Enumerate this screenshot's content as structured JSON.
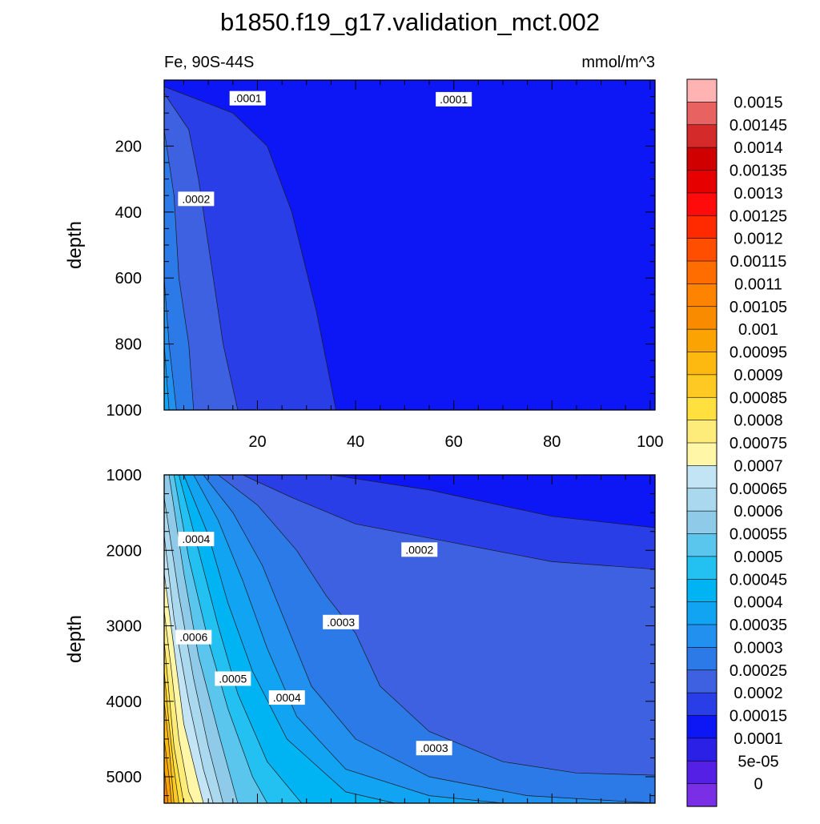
{
  "chart_data": [
    {
      "type": "contour",
      "title": "b1850.f19_g17.validation_mct.002",
      "subtitle_left": "Fe, 90S-44S",
      "subtitle_right": "mmol/m^3",
      "ylabel": "depth",
      "xlabel": "",
      "xlim": [
        1,
        101
      ],
      "ylim": [
        1000,
        0
      ],
      "x_ticks": [
        20,
        40,
        60,
        80,
        100
      ],
      "y_ticks": [
        200,
        400,
        600,
        800,
        1000
      ],
      "contour_labels": [
        {
          "text": ".0001",
          "x": 18,
          "y": 55
        },
        {
          "text": ".0001",
          "x": 60,
          "y": 58
        },
        {
          "text": ".0002",
          "x": 7.5,
          "y": 360
        }
      ],
      "regions": [
        {
          "level": 0.00015,
          "color": "#2a3ee8",
          "points": [
            [
              1,
              20
            ],
            [
              15,
              100
            ],
            [
              22,
              200
            ],
            [
              27,
              400
            ],
            [
              32,
              700
            ],
            [
              36,
              1000
            ],
            [
              1,
              1000
            ]
          ]
        },
        {
          "level": 0.0002,
          "color": "#3d61e0",
          "points": [
            [
              1,
              40
            ],
            [
              6,
              150
            ],
            [
              8,
              300
            ],
            [
              10,
              500
            ],
            [
              13,
              800
            ],
            [
              16,
              1000
            ],
            [
              1,
              1000
            ]
          ]
        },
        {
          "level": 0.00025,
          "color": "#2b7ae8",
          "points": [
            [
              1,
              150
            ],
            [
              3,
              350
            ],
            [
              4,
              600
            ],
            [
              6,
              800
            ],
            [
              7,
              1000
            ],
            [
              1,
              1000
            ]
          ]
        },
        {
          "level": 0.0003,
          "color": "#2190ef",
          "points": [
            [
              1,
              600
            ],
            [
              2,
              800
            ],
            [
              3.5,
              1000
            ],
            [
              1,
              1000
            ]
          ]
        },
        {
          "level": 0.00035,
          "color": "#11a4f2",
          "points": [
            [
              1,
              800
            ],
            [
              2,
              1000
            ],
            [
              1,
              1000
            ]
          ]
        }
      ],
      "grid": false
    },
    {
      "type": "contour",
      "ylabel": "depth",
      "xlabel": "",
      "xlim": [
        1,
        101
      ],
      "ylim": [
        5350,
        1000
      ],
      "x_ticks": [
        20,
        40,
        60,
        80,
        100
      ],
      "y_ticks": [
        1000,
        2000,
        3000,
        4000,
        5000
      ],
      "contour_labels": [
        {
          "text": ".0004",
          "x": 7.5,
          "y": 1850
        },
        {
          "text": ".0002",
          "x": 53,
          "y": 1990
        },
        {
          "text": ".0003",
          "x": 37,
          "y": 2950
        },
        {
          "text": ".0006",
          "x": 7,
          "y": 3150
        },
        {
          "text": ".0005",
          "x": 15,
          "y": 3700
        },
        {
          "text": ".0004",
          "x": 26,
          "y": 3950
        },
        {
          "text": ".0003",
          "x": 56,
          "y": 4620
        }
      ],
      "regions": [
        {
          "level": 0.00015,
          "color": "#2a3ee8",
          "points": [
            [
              1,
              1000
            ],
            [
              35,
              1000
            ],
            [
              55,
              1200
            ],
            [
              80,
              1550
            ],
            [
              101,
              1700
            ],
            [
              101,
              5350
            ],
            [
              1,
              5350
            ]
          ]
        },
        {
          "level": 0.0002,
          "color": "#3d61e0",
          "points": [
            [
              1,
              1000
            ],
            [
              17,
              1000
            ],
            [
              27,
              1300
            ],
            [
              40,
              1650
            ],
            [
              60,
              1900
            ],
            [
              80,
              2150
            ],
            [
              101,
              2250
            ],
            [
              101,
              5350
            ],
            [
              1,
              5350
            ]
          ]
        },
        {
          "level": 0.00025,
          "color": "#2b7ae8",
          "points": [
            [
              1,
              1000
            ],
            [
              12,
              1000
            ],
            [
              20,
              1400
            ],
            [
              28,
              2000
            ],
            [
              34,
              2600
            ],
            [
              40,
              3100
            ],
            [
              45,
              3800
            ],
            [
              55,
              4400
            ],
            [
              70,
              4800
            ],
            [
              85,
              4950
            ],
            [
              101,
              4980
            ],
            [
              101,
              5350
            ],
            [
              1,
              5350
            ]
          ]
        },
        {
          "level": 0.0003,
          "color": "#2190ef",
          "points": [
            [
              1,
              1000
            ],
            [
              9,
              1000
            ],
            [
              15,
              1500
            ],
            [
              21,
              2200
            ],
            [
              26,
              3000
            ],
            [
              31,
              3800
            ],
            [
              40,
              4500
            ],
            [
              55,
              5000
            ],
            [
              75,
              5250
            ],
            [
              101,
              5350
            ],
            [
              1,
              5350
            ]
          ]
        },
        {
          "level": 0.00035,
          "color": "#11a4f2",
          "points": [
            [
              1,
              1000
            ],
            [
              7,
              1000
            ],
            [
              12,
              1600
            ],
            [
              17,
              2400
            ],
            [
              22,
              3300
            ],
            [
              28,
              4200
            ],
            [
              38,
              4900
            ],
            [
              55,
              5250
            ],
            [
              70,
              5350
            ],
            [
              1,
              5350
            ]
          ]
        },
        {
          "level": 0.0004,
          "color": "#00b4f4",
          "points": [
            [
              1,
              1000
            ],
            [
              5,
              1000
            ],
            [
              10,
              1800
            ],
            [
              14,
              2700
            ],
            [
              19,
              3600
            ],
            [
              26,
              4500
            ],
            [
              38,
              5200
            ],
            [
              48,
              5350
            ],
            [
              1,
              5350
            ]
          ]
        },
        {
          "level": 0.00045,
          "color": "#23c1f2",
          "points": [
            [
              1,
              1000
            ],
            [
              4,
              1000
            ],
            [
              8,
              2000
            ],
            [
              12,
              3000
            ],
            [
              16,
              3900
            ],
            [
              22,
              4800
            ],
            [
              29,
              5350
            ],
            [
              1,
              5350
            ]
          ]
        },
        {
          "level": 0.0005,
          "color": "#5ac6ee",
          "points": [
            [
              1,
              1000
            ],
            [
              3,
              1000
            ],
            [
              6,
              2100
            ],
            [
              10,
              3200
            ],
            [
              14,
              4100
            ],
            [
              19,
              5000
            ],
            [
              22,
              5350
            ],
            [
              1,
              5350
            ]
          ]
        },
        {
          "level": 0.00055,
          "color": "#8fcbe8",
          "points": [
            [
              1,
              1000
            ],
            [
              2,
              1000
            ],
            [
              5,
              2300
            ],
            [
              8,
              3400
            ],
            [
              12,
              4400
            ],
            [
              16,
              5350
            ],
            [
              1,
              5350
            ]
          ]
        },
        {
          "level": 0.0006,
          "color": "#aad8ef",
          "points": [
            [
              1,
              1300
            ],
            [
              4,
              2600
            ],
            [
              7,
              3700
            ],
            [
              10,
              4600
            ],
            [
              13,
              5350
            ],
            [
              1,
              5350
            ]
          ]
        },
        {
          "level": 0.00065,
          "color": "#c2e4f5",
          "points": [
            [
              1,
              1800
            ],
            [
              3,
              2900
            ],
            [
              6,
              4000
            ],
            [
              9,
              4900
            ],
            [
              11,
              5350
            ],
            [
              1,
              5350
            ]
          ]
        },
        {
          "level": 0.0007,
          "color": "#fff7a7",
          "points": [
            [
              1,
              2300
            ],
            [
              3,
              3300
            ],
            [
              5,
              4300
            ],
            [
              8,
              5100
            ],
            [
              9,
              5350
            ],
            [
              1,
              5350
            ]
          ]
        },
        {
          "level": 0.00075,
          "color": "#fdec79",
          "points": [
            [
              1,
              2800
            ],
            [
              2.5,
              3600
            ],
            [
              4,
              4500
            ],
            [
              6,
              5200
            ],
            [
              7,
              5350
            ],
            [
              1,
              5350
            ]
          ]
        },
        {
          "level": 0.0008,
          "color": "#ffe03e",
          "points": [
            [
              1,
              3200
            ],
            [
              2,
              3900
            ],
            [
              3,
              4600
            ],
            [
              5,
              5350
            ],
            [
              1,
              5350
            ]
          ]
        },
        {
          "level": 0.00085,
          "color": "#fdc922",
          "points": [
            [
              1,
              3600
            ],
            [
              2,
              4300
            ],
            [
              3,
              4900
            ],
            [
              4,
              5350
            ],
            [
              1,
              5350
            ]
          ]
        },
        {
          "level": 0.0009,
          "color": "#fdb910",
          "points": [
            [
              1,
              4000
            ],
            [
              2,
              4600
            ],
            [
              3,
              5350
            ],
            [
              1,
              5350
            ]
          ]
        },
        {
          "level": 0.00095,
          "color": "#fba302",
          "points": [
            [
              1,
              4500
            ],
            [
              2,
              5000
            ],
            [
              2.5,
              5350
            ],
            [
              1,
              5350
            ]
          ]
        },
        {
          "level": 0.001,
          "color": "#f98b00",
          "points": [
            [
              1,
              4900
            ],
            [
              1.8,
              5350
            ],
            [
              1,
              5350
            ]
          ]
        }
      ],
      "grid": false
    }
  ],
  "colorbar": {
    "labels": [
      "0.0015",
      "0.00145",
      "0.0014",
      "0.00135",
      "0.0013",
      "0.00125",
      "0.0012",
      "0.00115",
      "0.0011",
      "0.00105",
      "0.001",
      "0.00095",
      "0.0009",
      "0.00085",
      "0.0008",
      "0.00075",
      "0.0007",
      "0.00065",
      "0.0006",
      "0.00055",
      "0.0005",
      "0.00045",
      "0.0004",
      "0.00035",
      "0.0003",
      "0.00025",
      "0.0002",
      "0.00015",
      "0.0001",
      "5e-05",
      "0"
    ],
    "colors": [
      "#ffb3b3",
      "#e96262",
      "#d42a2a",
      "#d10000",
      "#e60000",
      "#ff0b0b",
      "#ff2a00",
      "#ff4e00",
      "#ff6d00",
      "#fd8300",
      "#f98b00",
      "#fba302",
      "#fdb910",
      "#fdc922",
      "#ffe03e",
      "#fdec79",
      "#fff7a7",
      "#c2e4f5",
      "#aad8ef",
      "#8fcbe8",
      "#5ac6ee",
      "#23c1f2",
      "#00b4f4",
      "#11a4f2",
      "#2190ef",
      "#2b7ae8",
      "#3d61e0",
      "#2a3ee8",
      "#0d17f5",
      "#2a20e6",
      "#5420e6",
      "#7a2ee6"
    ]
  }
}
